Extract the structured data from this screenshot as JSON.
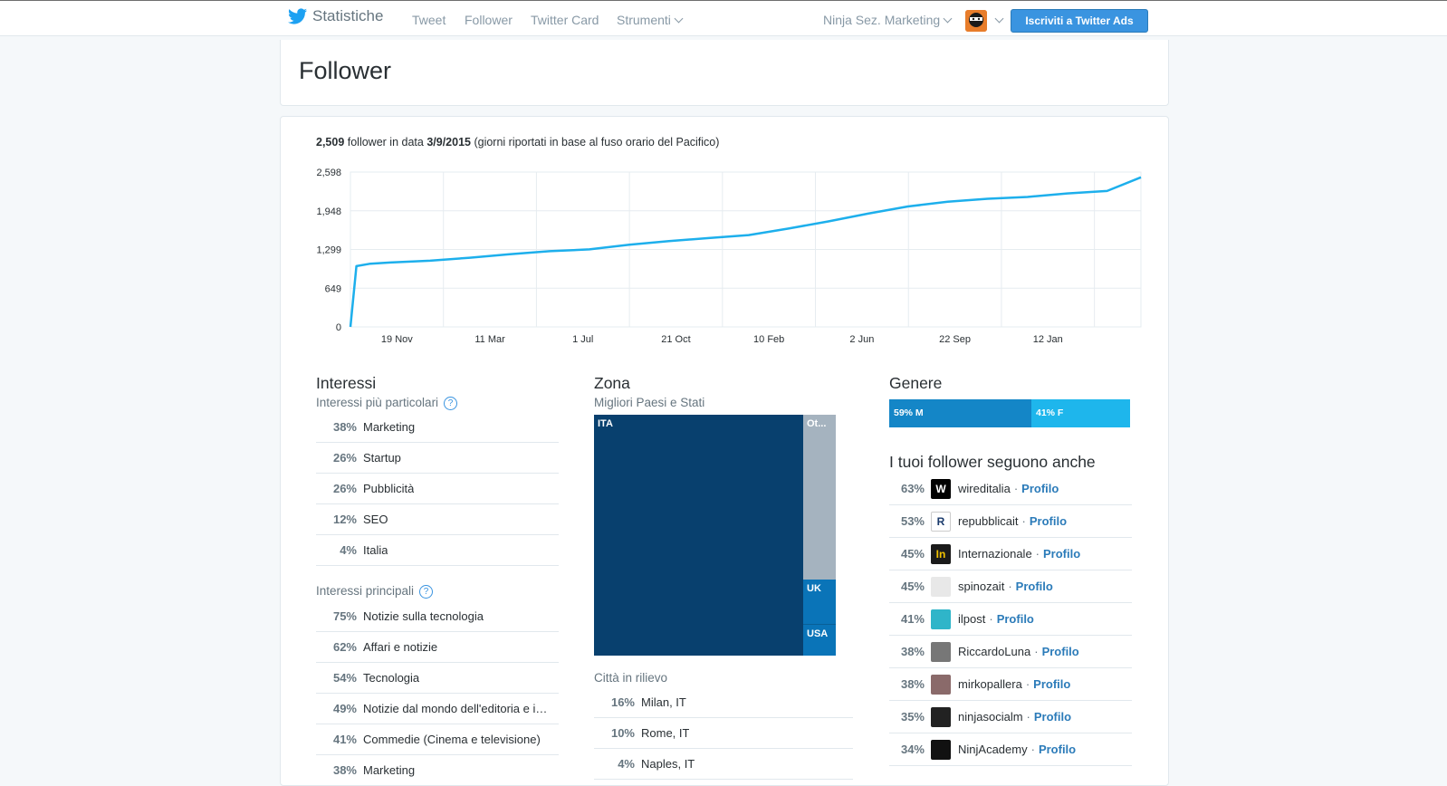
{
  "nav": {
    "brand": "Statistiche",
    "links": [
      "Tweet",
      "Follower",
      "Twitter Card",
      "Strumenti"
    ],
    "account": "Ninja Sez. Marketing",
    "ads_button": "Iscriviti a Twitter Ads"
  },
  "page": {
    "title": "Follower"
  },
  "summary": {
    "count": "2,509",
    "text1": " follower in data ",
    "date": "3/9/2015",
    "text2": " (giorni riportati in base al fuso orario del Pacifico)"
  },
  "chart_data": {
    "type": "line",
    "title": "",
    "xlabel": "",
    "ylabel": "",
    "y_ticks": [
      "2,598",
      "1,948",
      "1,299",
      "649",
      "0"
    ],
    "y_tick_values": [
      2598,
      1948,
      1299,
      649,
      0
    ],
    "x_ticks": [
      "19 Nov",
      "11 Mar",
      "1 Jul",
      "21 Oct",
      "10 Feb",
      "2 Jun",
      "22 Sep",
      "12 Jan"
    ],
    "ylim": [
      0,
      2598
    ],
    "grid": true,
    "color": "#1dafec",
    "series": [
      {
        "x": [
          0,
          0.3,
          1,
          2,
          4,
          6,
          8,
          10,
          12,
          14,
          16,
          18,
          20,
          22,
          24,
          26,
          28,
          30,
          32,
          34,
          36,
          38,
          39.7
        ],
        "values": [
          0,
          1020,
          1060,
          1080,
          1110,
          1160,
          1220,
          1270,
          1300,
          1380,
          1440,
          1490,
          1540,
          1650,
          1770,
          1900,
          2020,
          2100,
          2150,
          2180,
          2240,
          2280,
          2510
        ]
      }
    ]
  },
  "interests": {
    "title": "Interessi",
    "particular_label": "Interessi più particolari",
    "particular": [
      {
        "pct": "38%",
        "label": "Marketing"
      },
      {
        "pct": "26%",
        "label": "Startup"
      },
      {
        "pct": "26%",
        "label": "Pubblicità"
      },
      {
        "pct": "12%",
        "label": "SEO"
      },
      {
        "pct": "4%",
        "label": "Italia"
      }
    ],
    "main_label": "Interessi principali",
    "main": [
      {
        "pct": "75%",
        "label": "Notizie sulla tecnologia"
      },
      {
        "pct": "62%",
        "label": "Affari e notizie"
      },
      {
        "pct": "54%",
        "label": "Tecnologia"
      },
      {
        "pct": "49%",
        "label": "Notizie dal mondo dell'editoria e informazione"
      },
      {
        "pct": "41%",
        "label": "Commedie (Cinema e televisione)"
      },
      {
        "pct": "38%",
        "label": "Marketing"
      }
    ]
  },
  "zone": {
    "title": "Zona",
    "subtitle": "Migliori Paesi e Stati",
    "treemap": {
      "ita": "ITA",
      "other": "Ot...",
      "uk": "UK",
      "usa": "USA"
    },
    "cities_label": "Città in rilievo",
    "cities": [
      {
        "pct": "16%",
        "label": "Milan, IT"
      },
      {
        "pct": "10%",
        "label": "Rome, IT"
      },
      {
        "pct": "4%",
        "label": "Naples, IT"
      }
    ]
  },
  "gender": {
    "title": "Genere",
    "male": "59% M",
    "female": "41% F",
    "male_share": 0.59
  },
  "follows": {
    "title": "I tuoi follower seguono anche",
    "profile_label": "Profilo",
    "items": [
      {
        "pct": "63%",
        "name": "wireditalia",
        "avatar": "W"
      },
      {
        "pct": "53%",
        "name": "repubblicait",
        "avatar": "R"
      },
      {
        "pct": "45%",
        "name": "Internazionale",
        "avatar": "In"
      },
      {
        "pct": "45%",
        "name": "spinozait",
        "avatar": ""
      },
      {
        "pct": "41%",
        "name": "ilpost",
        "avatar": ""
      },
      {
        "pct": "38%",
        "name": "RiccardoLuna",
        "avatar": ""
      },
      {
        "pct": "38%",
        "name": "mirkopallera",
        "avatar": ""
      },
      {
        "pct": "35%",
        "name": "ninjasocialm",
        "avatar": ""
      },
      {
        "pct": "34%",
        "name": "NinjAcademy",
        "avatar": ""
      }
    ]
  },
  "colors": {
    "accent": "#1dafec",
    "link": "#2b7bb9",
    "treemap_dark": "#08406e",
    "treemap_mid": "#0a74b8",
    "treemap_grey": "#a5b3bf",
    "gender_m": "#1486c7",
    "gender_f": "#1eb6ec"
  }
}
